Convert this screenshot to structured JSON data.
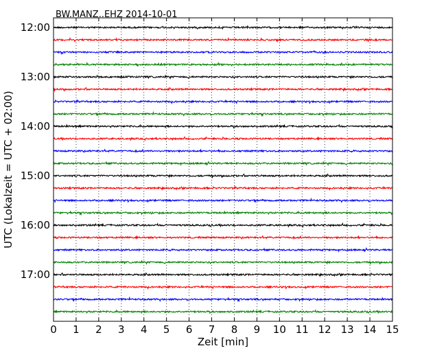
{
  "chart_data": {
    "type": "line",
    "title": "BW.MANZ..EHZ 2014-10-01",
    "xlabel": "Zeit  [min]",
    "ylabel": "UTC (Lokalzeit = UTC + 02:00)",
    "xlim": [
      0,
      15
    ],
    "x_ticks": [
      0,
      1,
      2,
      3,
      4,
      5,
      6,
      7,
      8,
      9,
      10,
      11,
      12,
      13,
      14,
      15
    ],
    "x_tick_labels": [
      "0",
      "1",
      "2",
      "3",
      "4",
      "5",
      "6",
      "7",
      "8",
      "9",
      "10",
      "11",
      "12",
      "13",
      "14",
      "15"
    ],
    "y_tick_labels": [
      "12:00",
      "13:00",
      "14:00",
      "15:00",
      "16:00",
      "17:00"
    ],
    "grid": "vertical dotted",
    "trace_colors": [
      "#000000",
      "#ff0000",
      "#0000ff",
      "#008000"
    ],
    "series": [
      {
        "start": "12:00",
        "color": "#000000"
      },
      {
        "start": "12:15",
        "color": "#ff0000"
      },
      {
        "start": "12:30",
        "color": "#0000ff"
      },
      {
        "start": "12:45",
        "color": "#008000"
      },
      {
        "start": "13:00",
        "color": "#000000"
      },
      {
        "start": "13:15",
        "color": "#ff0000"
      },
      {
        "start": "13:30",
        "color": "#0000ff"
      },
      {
        "start": "13:45",
        "color": "#008000"
      },
      {
        "start": "14:00",
        "color": "#000000"
      },
      {
        "start": "14:15",
        "color": "#ff0000"
      },
      {
        "start": "14:30",
        "color": "#0000ff"
      },
      {
        "start": "14:45",
        "color": "#008000"
      },
      {
        "start": "15:00",
        "color": "#000000"
      },
      {
        "start": "15:15",
        "color": "#ff0000"
      },
      {
        "start": "15:30",
        "color": "#0000ff"
      },
      {
        "start": "15:45",
        "color": "#008000"
      },
      {
        "start": "16:00",
        "color": "#000000"
      },
      {
        "start": "16:15",
        "color": "#ff0000"
      },
      {
        "start": "16:30",
        "color": "#0000ff"
      },
      {
        "start": "16:45",
        "color": "#008000"
      },
      {
        "start": "17:00",
        "color": "#000000"
      },
      {
        "start": "17:15",
        "color": "#ff0000"
      },
      {
        "start": "17:30",
        "color": "#0000ff"
      },
      {
        "start": "17:45",
        "color": "#008000"
      }
    ]
  }
}
